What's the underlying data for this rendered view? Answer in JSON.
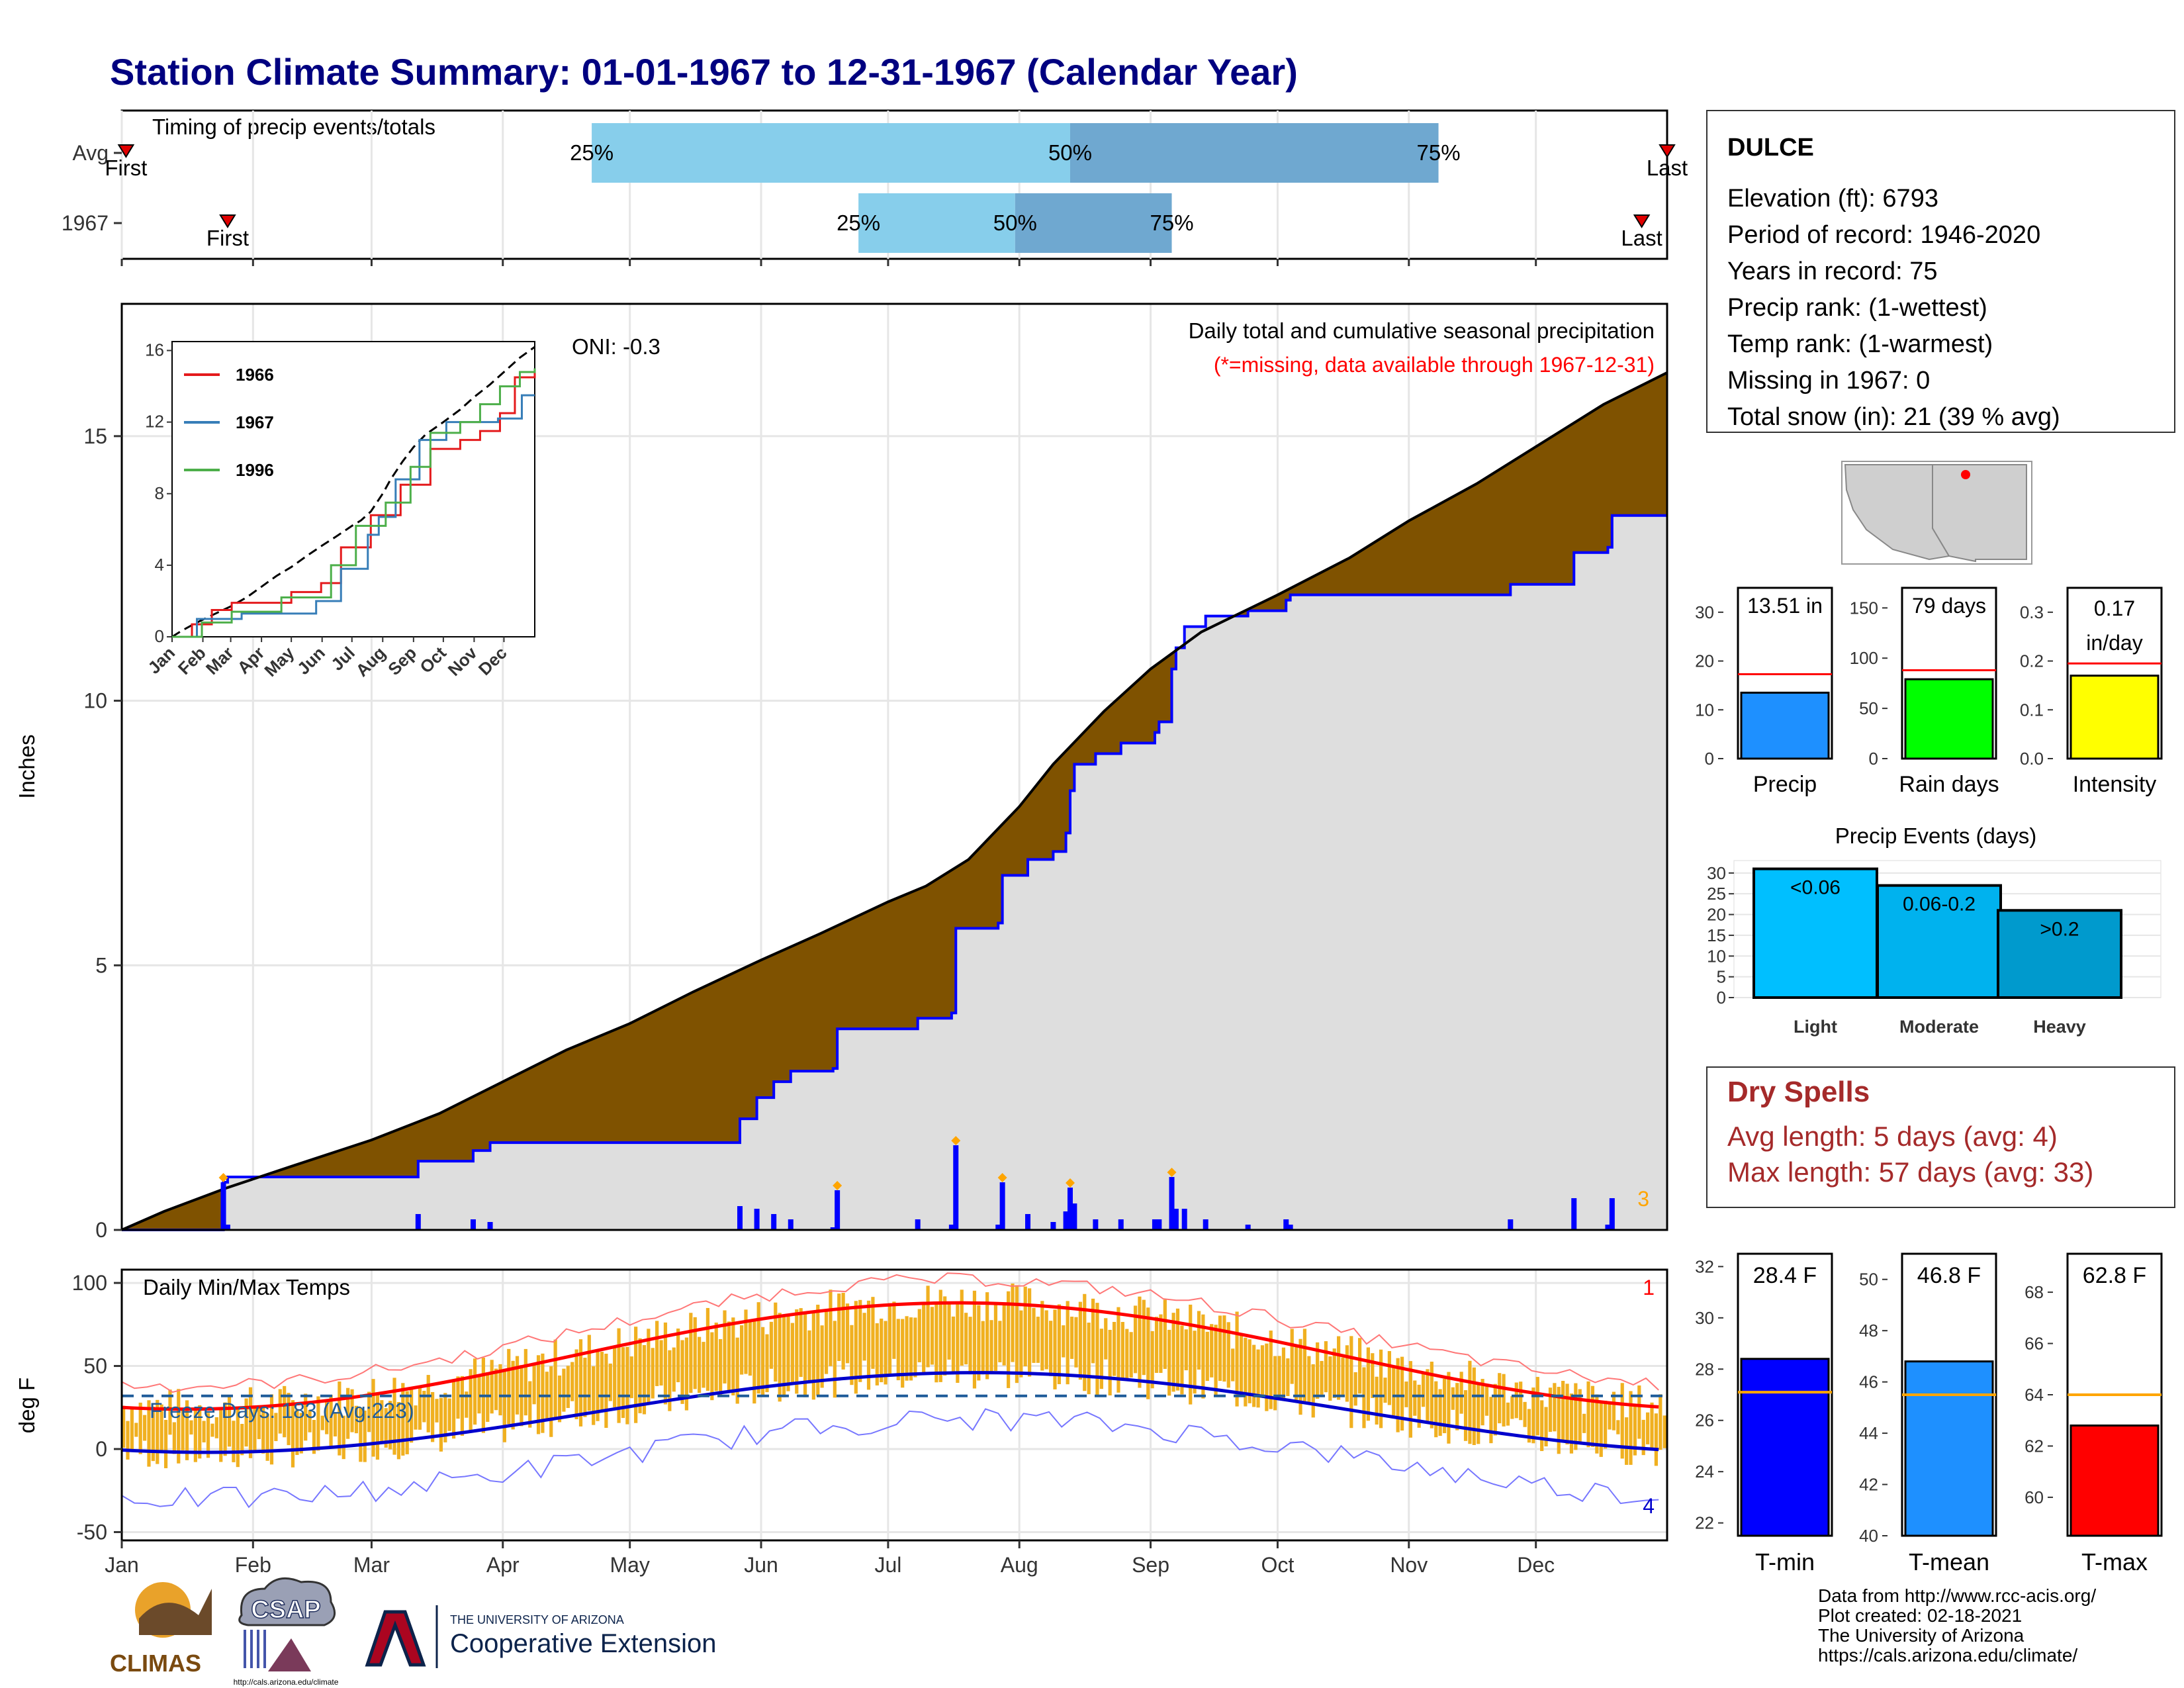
{
  "title": "Station Climate Summary: 01-01-1967 to 12-31-1967 (Calendar Year)",
  "timing": {
    "panel_label": "Timing of precip events/totals",
    "rows": [
      {
        "label": "Avg",
        "first_day": 1,
        "p25_day": 111,
        "p50_day": 224,
        "p75_day": 311,
        "last_day": 365,
        "first_label": "First",
        "last_label": "Last",
        "p25_label": "25%",
        "p50_label": "50%",
        "p75_label": "75%"
      },
      {
        "label": "1967",
        "first_day": 25,
        "p25_day": 174,
        "p50_day": 211,
        "p75_day": 248,
        "last_day": 359,
        "first_label": "First",
        "last_label": "Last",
        "p25_label": "25%",
        "p50_label": "50%",
        "p75_label": "75%"
      }
    ]
  },
  "precip_panel": {
    "y_axis_label": "Inches",
    "y_ticks": [
      "0",
      "5",
      "10",
      "15"
    ],
    "ylim": [
      0,
      17.5
    ],
    "header": "Daily total and cumulative seasonal precipitation",
    "missing_note": "(*=missing, data available through 1967-12-31)",
    "oni": "ONI: -0.3",
    "corner_count": "3",
    "avg_cumulative": [
      [
        0,
        0
      ],
      [
        10,
        0.35
      ],
      [
        25,
        0.8
      ],
      [
        40,
        1.2
      ],
      [
        59,
        1.7
      ],
      [
        75,
        2.2
      ],
      [
        90,
        2.8
      ],
      [
        105,
        3.4
      ],
      [
        120,
        3.9
      ],
      [
        135,
        4.5
      ],
      [
        151,
        5.1
      ],
      [
        165,
        5.6
      ],
      [
        181,
        6.2
      ],
      [
        190,
        6.5
      ],
      [
        200,
        7.0
      ],
      [
        212,
        8.0
      ],
      [
        220,
        8.8
      ],
      [
        232,
        9.8
      ],
      [
        243,
        10.6
      ],
      [
        255,
        11.3
      ],
      [
        273,
        12.0
      ],
      [
        290,
        12.7
      ],
      [
        304,
        13.4
      ],
      [
        320,
        14.1
      ],
      [
        334,
        14.8
      ],
      [
        350,
        15.6
      ],
      [
        365,
        16.2
      ]
    ],
    "cum_1967": [
      [
        0,
        0
      ],
      [
        23,
        0.0
      ],
      [
        24,
        0.9
      ],
      [
        25,
        1.0
      ],
      [
        69,
        1.0
      ],
      [
        70,
        1.3
      ],
      [
        83,
        1.5
      ],
      [
        87,
        1.65
      ],
      [
        145,
        1.65
      ],
      [
        146,
        2.1
      ],
      [
        150,
        2.5
      ],
      [
        154,
        2.8
      ],
      [
        158,
        3.0
      ],
      [
        168,
        3.05
      ],
      [
        169,
        3.8
      ],
      [
        187,
        3.8
      ],
      [
        188,
        4.0
      ],
      [
        196,
        4.1
      ],
      [
        197,
        5.7
      ],
      [
        207,
        5.8
      ],
      [
        208,
        6.7
      ],
      [
        214,
        7.0
      ],
      [
        220,
        7.15
      ],
      [
        223,
        7.5
      ],
      [
        224,
        8.3
      ],
      [
        225,
        8.8
      ],
      [
        230,
        9.0
      ],
      [
        236,
        9.2
      ],
      [
        244,
        9.4
      ],
      [
        245,
        9.6
      ],
      [
        248,
        10.6
      ],
      [
        249,
        11.0
      ],
      [
        251,
        11.4
      ],
      [
        256,
        11.6
      ],
      [
        258,
        11.6
      ],
      [
        266,
        11.7
      ],
      [
        275,
        11.9
      ],
      [
        276,
        12.0
      ],
      [
        304,
        12.0
      ],
      [
        327,
        12.0
      ],
      [
        328,
        12.2
      ],
      [
        343,
        12.8
      ],
      [
        351,
        12.9
      ],
      [
        352,
        13.5
      ],
      [
        359,
        13.5
      ],
      [
        365,
        13.5
      ]
    ]
  },
  "inset": {
    "y_ticks": [
      "0",
      "4",
      "8",
      "12",
      "16"
    ],
    "months": [
      "Jan",
      "Feb",
      "Mar",
      "Apr",
      "May",
      "Jun",
      "Jul",
      "Aug",
      "Sep",
      "Oct",
      "Nov",
      "Dec"
    ],
    "series": [
      {
        "name": "1966",
        "color": "#e41a1c",
        "points": [
          [
            0,
            0
          ],
          [
            20,
            0.7
          ],
          [
            40,
            1.5
          ],
          [
            60,
            1.9
          ],
          [
            90,
            1.9
          ],
          [
            120,
            2.5
          ],
          [
            150,
            3.0
          ],
          [
            170,
            5.0
          ],
          [
            200,
            6.8
          ],
          [
            230,
            8.5
          ],
          [
            260,
            10.5
          ],
          [
            290,
            11.0
          ],
          [
            310,
            11.5
          ],
          [
            330,
            12.5
          ],
          [
            345,
            14.5
          ],
          [
            365,
            15.0
          ]
        ]
      },
      {
        "name": "1967",
        "color": "#377eb8",
        "points": [
          [
            0,
            0
          ],
          [
            25,
            1.0
          ],
          [
            70,
            1.3
          ],
          [
            145,
            2.0
          ],
          [
            170,
            3.8
          ],
          [
            197,
            5.7
          ],
          [
            208,
            6.7
          ],
          [
            225,
            8.8
          ],
          [
            249,
            11.0
          ],
          [
            276,
            12.0
          ],
          [
            328,
            12.2
          ],
          [
            352,
            13.5
          ],
          [
            365,
            13.5
          ]
        ]
      },
      {
        "name": "1996",
        "color": "#4daf4a",
        "points": [
          [
            0,
            0
          ],
          [
            30,
            0.8
          ],
          [
            60,
            1.4
          ],
          [
            110,
            2.2
          ],
          [
            160,
            4.0
          ],
          [
            185,
            6.2
          ],
          [
            215,
            7.5
          ],
          [
            240,
            9.5
          ],
          [
            260,
            11.4
          ],
          [
            290,
            12.0
          ],
          [
            310,
            13.0
          ],
          [
            330,
            14.0
          ],
          [
            350,
            14.8
          ],
          [
            365,
            15.0
          ]
        ]
      }
    ]
  },
  "temp_panel": {
    "title": "Daily Min/Max Temps",
    "y_axis_label": "deg F",
    "y_ticks": [
      "100",
      "50",
      "0",
      "-50"
    ],
    "ylim": [
      -55,
      108
    ],
    "freeze_text": "Freeze Days: 183 (Avg:223)",
    "freeze_line": 32,
    "count_high": "1",
    "count_low": "4",
    "x_months": [
      "Jan",
      "Feb",
      "Mar",
      "Apr",
      "May",
      "Jun",
      "Jul",
      "Aug",
      "Sep",
      "Oct",
      "Nov",
      "Dec"
    ]
  },
  "station": {
    "name": "DULCE",
    "lines": [
      "Elevation (ft): 6793",
      "Period of record: 1946-2020",
      "Years in record: 75",
      "Precip rank:  (1-wettest)",
      "Temp rank:  (1-warmest)",
      "Missing in 1967: 0",
      "Total snow (in): 21 (39 % avg)"
    ]
  },
  "summary_bars": [
    {
      "label": "Precip",
      "value_text": "13.51 in",
      "value": 13.51,
      "avg": 17.3,
      "ymax": 35,
      "ticks": [
        "0",
        "10",
        "20",
        "30"
      ],
      "color": "#1e90ff"
    },
    {
      "label": "Rain days",
      "value_text": "79 days",
      "value": 79,
      "avg": 88,
      "ymax": 170,
      "ticks": [
        "0",
        "50",
        "100",
        "150"
      ],
      "color": "#00ff00"
    },
    {
      "label": "Intensity",
      "value_text": "0.17 in/day",
      "value": 0.17,
      "avg": 0.195,
      "ymax": 0.35,
      "ticks": [
        "0.0",
        "0.1",
        "0.2",
        "0.3"
      ],
      "color": "#ffff00"
    }
  ],
  "precip_events": {
    "title": "Precip Events (days)",
    "ticks": [
      "0",
      "5",
      "10",
      "15",
      "20",
      "25",
      "30"
    ],
    "bars": [
      {
        "label": "Light",
        "bar_text": "<0.06",
        "value": 31,
        "color": "#00bfff"
      },
      {
        "label": "Moderate",
        "bar_text": "0.06-0.2",
        "value": 27,
        "color": "#00b2ee"
      },
      {
        "label": "Heavy",
        "bar_text": ">0.2",
        "value": 21,
        "color": "#009acd"
      }
    ]
  },
  "dry_spells": {
    "title": "Dry Spells",
    "avg_line": "Avg length: 5 days (avg: 4)",
    "max_line": "Max length: 57 days (avg: 33)"
  },
  "temp_bars": [
    {
      "label": "T-min",
      "value_text": "28.4 F",
      "value": 28.4,
      "avg": 27.1,
      "ymin": 21.5,
      "ymax": 32.5,
      "ticks": [
        "22",
        "24",
        "26",
        "28",
        "30",
        "32"
      ],
      "color": "#0000ff"
    },
    {
      "label": "T-mean",
      "value_text": "46.8 F",
      "value": 46.8,
      "avg": 45.5,
      "ymin": 40,
      "ymax": 51,
      "ticks": [
        "40",
        "42",
        "44",
        "46",
        "48",
        "50"
      ],
      "color": "#1e90ff"
    },
    {
      "label": "T-max",
      "value_text": "62.8 F",
      "value": 62.8,
      "avg": 64.0,
      "ymin": 58.5,
      "ymax": 69.5,
      "ticks": [
        "60",
        "62",
        "64",
        "66",
        "68"
      ],
      "color": "#ff0000"
    }
  ],
  "footer": {
    "lines": [
      "Data from http://www.rcc-acis.org/",
      "Plot created: 02-18-2021",
      "The University of Arizona",
      "https://cals.arizona.edu/climate/"
    ],
    "logo_climas": "CLIMAS",
    "logo_csap": "CSAP",
    "csap_url": "http://cals.arizona.edu/climate",
    "ua_small": "THE UNIVERSITY OF ARIZONA",
    "ua_big": "Cooperative Extension"
  },
  "colors": {
    "avg_fill": "#7f5200",
    "season_fill": "#dedede",
    "daily_bar": "#0000ff",
    "temp_bar": "#f0b020",
    "nav": "#000080",
    "dry": "#a52a2a"
  }
}
